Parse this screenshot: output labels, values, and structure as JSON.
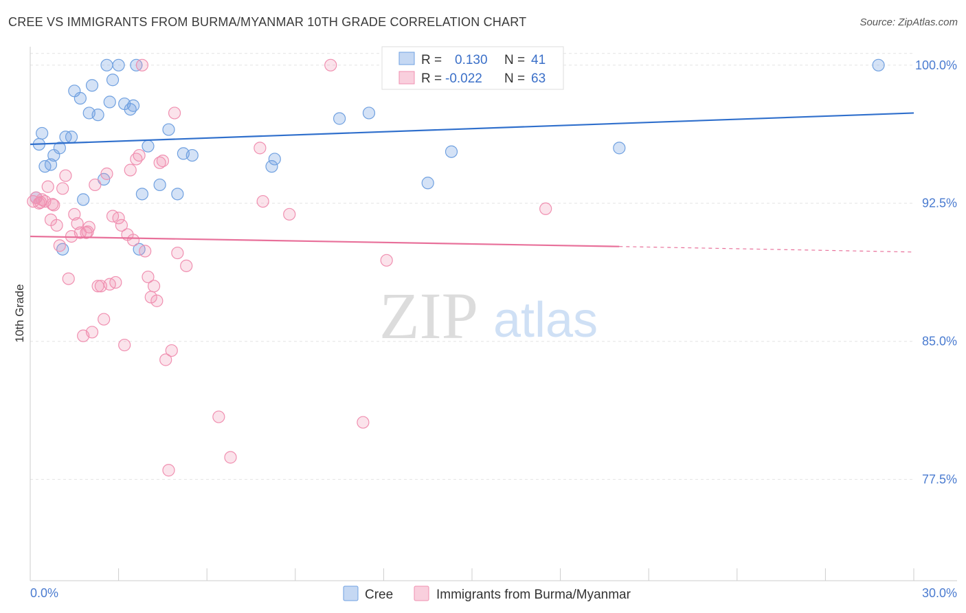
{
  "title": "CREE VS IMMIGRANTS FROM BURMA/MYANMAR 10TH GRADE CORRELATION CHART",
  "source": "Source: ZipAtlas.com",
  "watermark": {
    "zip": "ZIP",
    "atlas": "atlas"
  },
  "chart_data": {
    "type": "scatter",
    "title": "CREE VS IMMIGRANTS FROM BURMA/MYANMAR 10TH GRADE CORRELATION CHART",
    "xlabel": "",
    "ylabel": "10th Grade",
    "xlim": [
      0,
      30
    ],
    "ylim": [
      72,
      101
    ],
    "x_tick_labels": [
      {
        "value": 0,
        "label": "0.0%"
      },
      {
        "value": 30,
        "label": "30.0%"
      }
    ],
    "y_tick_labels": [
      {
        "value": 100,
        "label": "100.0%"
      },
      {
        "value": 92.5,
        "label": "92.5%"
      },
      {
        "value": 85,
        "label": "85.0%"
      },
      {
        "value": 77.5,
        "label": "77.5%"
      }
    ],
    "legend_position": "top-center",
    "colors": {
      "cree": "#6fa0e0",
      "burma": "#f08fb0",
      "cree_line": "#2f6fcc",
      "burma_line": "#e8709a"
    },
    "legend": [
      {
        "r_label": "R =",
        "r_value": "0.130",
        "n_label": "N =",
        "n_value": "41"
      },
      {
        "r_label": "R =",
        "r_value": "-0.022",
        "n_label": "N =",
        "n_value": "63"
      }
    ],
    "series": [
      {
        "name": "Cree",
        "trend": {
          "x": [
            0,
            30
          ],
          "y": [
            95.7,
            97.4
          ]
        },
        "points": [
          [
            0.3,
            95.7
          ],
          [
            0.4,
            96.3
          ],
          [
            0.5,
            94.5
          ],
          [
            0.7,
            94.6
          ],
          [
            0.8,
            95.1
          ],
          [
            1.0,
            95.5
          ],
          [
            1.1,
            90.0
          ],
          [
            1.2,
            96.1
          ],
          [
            1.4,
            96.1
          ],
          [
            1.5,
            98.6
          ],
          [
            1.7,
            98.2
          ],
          [
            2.0,
            97.4
          ],
          [
            2.1,
            98.9
          ],
          [
            2.3,
            97.3
          ],
          [
            2.5,
            93.8
          ],
          [
            2.6,
            100.0
          ],
          [
            2.7,
            98.0
          ],
          [
            2.8,
            99.2
          ],
          [
            3.0,
            100.0
          ],
          [
            3.2,
            97.9
          ],
          [
            3.4,
            97.6
          ],
          [
            3.5,
            97.8
          ],
          [
            3.6,
            100.0
          ],
          [
            3.7,
            90.0
          ],
          [
            4.0,
            95.6
          ],
          [
            4.4,
            93.5
          ],
          [
            4.7,
            96.5
          ],
          [
            5.0,
            93.0
          ],
          [
            5.2,
            95.2
          ],
          [
            5.5,
            95.1
          ],
          [
            0.2,
            92.8
          ],
          [
            1.8,
            92.7
          ],
          [
            3.8,
            93.0
          ],
          [
            8.2,
            94.5
          ],
          [
            8.3,
            94.9
          ],
          [
            10.5,
            97.1
          ],
          [
            11.5,
            97.4
          ],
          [
            13.5,
            93.6
          ],
          [
            14.3,
            95.3
          ],
          [
            20.0,
            95.5
          ],
          [
            28.8,
            100.0
          ]
        ]
      },
      {
        "name": "Immigrants from Burma/Myanmar",
        "trend": {
          "x": [
            0,
            20.0
          ],
          "y": [
            90.7,
            90.15
          ]
        },
        "trend_dashed": {
          "x": [
            20.0,
            30
          ],
          "y": [
            90.15,
            89.85
          ]
        },
        "points": [
          [
            0.1,
            92.6
          ],
          [
            0.2,
            92.8
          ],
          [
            0.3,
            92.5
          ],
          [
            0.4,
            92.7
          ],
          [
            0.5,
            92.6
          ],
          [
            0.6,
            93.4
          ],
          [
            0.7,
            91.6
          ],
          [
            0.8,
            92.4
          ],
          [
            0.9,
            91.3
          ],
          [
            1.0,
            90.2
          ],
          [
            1.1,
            93.3
          ],
          [
            1.2,
            94.0
          ],
          [
            1.3,
            88.4
          ],
          [
            1.4,
            90.7
          ],
          [
            1.5,
            91.9
          ],
          [
            1.6,
            91.4
          ],
          [
            1.7,
            90.9
          ],
          [
            1.8,
            85.3
          ],
          [
            1.9,
            90.9
          ],
          [
            2.0,
            91.2
          ],
          [
            2.1,
            85.5
          ],
          [
            2.2,
            93.5
          ],
          [
            2.3,
            88.0
          ],
          [
            2.4,
            88.0
          ],
          [
            2.5,
            86.2
          ],
          [
            2.6,
            94.1
          ],
          [
            2.7,
            88.1
          ],
          [
            2.8,
            91.8
          ],
          [
            2.9,
            88.2
          ],
          [
            3.0,
            91.7
          ],
          [
            3.1,
            91.3
          ],
          [
            3.2,
            84.8
          ],
          [
            3.3,
            90.8
          ],
          [
            3.4,
            94.3
          ],
          [
            3.5,
            90.5
          ],
          [
            3.6,
            94.9
          ],
          [
            3.7,
            95.1
          ],
          [
            3.8,
            100.0
          ],
          [
            3.9,
            89.9
          ],
          [
            4.0,
            88.5
          ],
          [
            4.1,
            87.4
          ],
          [
            4.2,
            88.0
          ],
          [
            4.3,
            87.2
          ],
          [
            4.4,
            94.7
          ],
          [
            4.5,
            94.8
          ],
          [
            4.6,
            84.0
          ],
          [
            4.7,
            78.0
          ],
          [
            4.8,
            84.5
          ],
          [
            4.9,
            97.4
          ],
          [
            5.0,
            89.8
          ],
          [
            5.3,
            89.1
          ],
          [
            6.4,
            80.9
          ],
          [
            6.8,
            78.7
          ],
          [
            7.8,
            95.5
          ],
          [
            7.9,
            92.6
          ],
          [
            8.8,
            91.9
          ],
          [
            10.2,
            100.0
          ],
          [
            11.3,
            80.6
          ],
          [
            12.1,
            89.4
          ],
          [
            17.5,
            92.2
          ],
          [
            0.35,
            92.55
          ],
          [
            0.75,
            92.45
          ],
          [
            1.95,
            90.95
          ]
        ]
      }
    ]
  }
}
